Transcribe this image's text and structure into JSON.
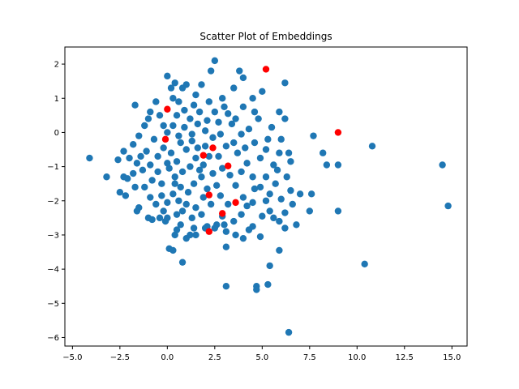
{
  "chart_data": {
    "type": "scatter",
    "title": "Scatter Plot of Embeddings",
    "xlabel": "",
    "ylabel": "",
    "xlim": [
      -5.4,
      15.8
    ],
    "ylim": [
      -6.25,
      2.5
    ],
    "xticks": [
      -5.0,
      -2.5,
      0.0,
      2.5,
      5.0,
      7.5,
      10.0,
      12.5,
      15.0
    ],
    "yticks": [
      2,
      1,
      0,
      -1,
      -2,
      -3,
      -4,
      -5,
      -6
    ],
    "xtick_labels": [
      "−5.0",
      "−2.5",
      "0.0",
      "2.5",
      "5.0",
      "7.5",
      "10.0",
      "12.5",
      "15.0"
    ],
    "ytick_labels": [
      "2",
      "1",
      "0",
      "−1",
      "−2",
      "−3",
      "−4",
      "−5",
      "−6"
    ],
    "grid": false,
    "colors": {
      "main": "#1f77b4",
      "highlight": "#ff0000"
    },
    "series": [
      {
        "color": "#1f77b4",
        "points": [
          [
            2.5,
            2.1
          ],
          [
            2.3,
            1.8
          ],
          [
            3.8,
            1.8
          ],
          [
            4.0,
            1.6
          ],
          [
            0.0,
            1.65
          ],
          [
            0.4,
            1.45
          ],
          [
            0.8,
            1.3
          ],
          [
            0.2,
            1.3
          ],
          [
            1.0,
            1.4
          ],
          [
            1.8,
            1.4
          ],
          [
            6.2,
            1.45
          ],
          [
            5.0,
            1.2
          ],
          [
            -1.7,
            0.8
          ],
          [
            -0.9,
            0.6
          ],
          [
            -0.4,
            0.5
          ],
          [
            3.0,
            0.75
          ],
          [
            4.0,
            0.75
          ],
          [
            4.6,
            0.6
          ],
          [
            5.9,
            0.6
          ],
          [
            6.2,
            0.4
          ],
          [
            4.8,
            0.4
          ],
          [
            -1.0,
            0.4
          ],
          [
            -1.2,
            0.2
          ],
          [
            -0.2,
            0.2
          ],
          [
            -1.5,
            -0.1
          ],
          [
            -1.8,
            -0.35
          ],
          [
            -2.3,
            -0.55
          ],
          [
            -2.0,
            -0.75
          ],
          [
            -2.6,
            -0.8
          ],
          [
            -1.6,
            -0.9
          ],
          [
            -1.1,
            -0.55
          ],
          [
            5.5,
            0.15
          ],
          [
            6.0,
            -0.2
          ],
          [
            5.2,
            -0.5
          ],
          [
            4.9,
            -0.75
          ],
          [
            6.4,
            -0.6
          ],
          [
            7.7,
            -0.1
          ],
          [
            8.2,
            -0.6
          ],
          [
            8.4,
            -0.95
          ],
          [
            9.0,
            -0.95
          ],
          [
            10.8,
            -0.4
          ],
          [
            14.5,
            -0.95
          ],
          [
            14.8,
            -2.15
          ],
          [
            -4.1,
            -0.75
          ],
          [
            -3.2,
            -1.3
          ],
          [
            -2.3,
            -1.3
          ],
          [
            -2.1,
            -1.35
          ],
          [
            -1.7,
            -1.6
          ],
          [
            -2.5,
            -1.75
          ],
          [
            -2.2,
            -1.85
          ],
          [
            -1.5,
            -2.2
          ],
          [
            -1.6,
            -2.3
          ],
          [
            -1.0,
            -2.5
          ],
          [
            -0.8,
            -2.55
          ],
          [
            -0.4,
            -2.5
          ],
          [
            0.0,
            -2.5
          ],
          [
            0.5,
            -2.4
          ],
          [
            0.5,
            -2.85
          ],
          [
            0.4,
            -3.0
          ],
          [
            1.2,
            -3.0
          ],
          [
            1.5,
            -3.0
          ],
          [
            1.0,
            -3.1
          ],
          [
            0.1,
            -3.4
          ],
          [
            0.3,
            -3.45
          ],
          [
            0.8,
            -3.8
          ],
          [
            2.1,
            -2.75
          ],
          [
            2.6,
            -2.7
          ],
          [
            2.5,
            -2.8
          ],
          [
            3.1,
            -2.9
          ],
          [
            3.1,
            -3.35
          ],
          [
            3.6,
            -3.0
          ],
          [
            4.0,
            -3.1
          ],
          [
            4.3,
            -2.85
          ],
          [
            4.9,
            -3.05
          ],
          [
            4.5,
            -2.75
          ],
          [
            5.0,
            -2.45
          ],
          [
            5.4,
            -2.3
          ],
          [
            5.6,
            -2.5
          ],
          [
            5.9,
            -2.6
          ],
          [
            6.2,
            -2.8
          ],
          [
            6.2,
            -2.35
          ],
          [
            6.6,
            -2.1
          ],
          [
            6.0,
            -1.95
          ],
          [
            6.5,
            -1.7
          ],
          [
            7.0,
            -1.8
          ],
          [
            7.6,
            -1.8
          ],
          [
            7.5,
            -2.3
          ],
          [
            6.8,
            -2.7
          ],
          [
            5.9,
            -3.45
          ],
          [
            5.4,
            -3.9
          ],
          [
            3.1,
            -4.5
          ],
          [
            4.7,
            -4.5
          ],
          [
            4.7,
            -4.6
          ],
          [
            5.3,
            -4.45
          ],
          [
            6.4,
            -5.85
          ],
          [
            10.4,
            -3.85
          ],
          [
            9.0,
            -2.3
          ],
          [
            5.8,
            -1.1
          ],
          [
            6.3,
            -1.3
          ],
          [
            6.5,
            -0.85
          ],
          [
            5.6,
            -0.95
          ],
          [
            5.2,
            -1.3
          ],
          [
            4.9,
            -1.6
          ],
          [
            5.4,
            -1.8
          ],
          [
            4.6,
            -1.65
          ],
          [
            4.5,
            -2.05
          ],
          [
            3.9,
            -2.4
          ],
          [
            4.2,
            -2.15
          ],
          [
            3.5,
            -2.6
          ],
          [
            2.9,
            -2.45
          ],
          [
            3.2,
            -2.1
          ],
          [
            2.8,
            -1.85
          ],
          [
            3.6,
            -1.55
          ],
          [
            3.3,
            -1.25
          ],
          [
            3.9,
            -1.15
          ],
          [
            4.2,
            -0.9
          ],
          [
            3.7,
            -0.6
          ],
          [
            4.1,
            -0.45
          ],
          [
            3.5,
            -0.3
          ],
          [
            3.9,
            -0.05
          ],
          [
            3.4,
            0.25
          ],
          [
            3.2,
            0.55
          ],
          [
            2.7,
            0.3
          ],
          [
            2.5,
            0.6
          ],
          [
            2.1,
            0.35
          ],
          [
            1.7,
            0.6
          ],
          [
            1.2,
            0.4
          ],
          [
            0.9,
            0.65
          ],
          [
            0.5,
            0.5
          ],
          [
            0.3,
            0.2
          ],
          [
            0.6,
            -0.1
          ],
          [
            0.9,
            0.15
          ],
          [
            1.3,
            -0.05
          ],
          [
            1.6,
            0.25
          ],
          [
            2.0,
            0.05
          ],
          [
            2.4,
            -0.15
          ],
          [
            2.8,
            -0.05
          ],
          [
            3.1,
            -0.4
          ],
          [
            2.7,
            -0.7
          ],
          [
            2.9,
            -1.05
          ],
          [
            2.4,
            -1.2
          ],
          [
            2.6,
            -1.55
          ],
          [
            2.1,
            -1.65
          ],
          [
            1.8,
            -1.3
          ],
          [
            1.4,
            -1.5
          ],
          [
            1.1,
            -1.75
          ],
          [
            0.7,
            -1.6
          ],
          [
            0.3,
            -1.8
          ],
          [
            0.0,
            -2.05
          ],
          [
            -0.3,
            -1.85
          ],
          [
            -0.6,
            -2.1
          ],
          [
            -0.9,
            -1.9
          ],
          [
            -1.2,
            -1.6
          ],
          [
            -0.8,
            -1.4
          ],
          [
            -0.5,
            -1.15
          ],
          [
            -0.9,
            -0.95
          ],
          [
            -0.5,
            -0.7
          ],
          [
            -0.2,
            -0.45
          ],
          [
            0.2,
            -0.6
          ],
          [
            0.5,
            -0.85
          ],
          [
            0.1,
            -1.05
          ],
          [
            0.4,
            -1.3
          ],
          [
            0.8,
            -1.15
          ],
          [
            1.2,
            -1.0
          ],
          [
            1.5,
            -0.75
          ],
          [
            1.9,
            -0.95
          ],
          [
            1.6,
            -0.45
          ],
          [
            1.0,
            -0.5
          ],
          [
            0.7,
            -0.3
          ],
          [
            1.3,
            -0.25
          ],
          [
            2.0,
            -0.4
          ],
          [
            -0.3,
            -1.5
          ],
          [
            0.0,
            -0.9
          ],
          [
            1.0,
            -2.1
          ],
          [
            1.5,
            -2.2
          ],
          [
            1.8,
            -2.4
          ],
          [
            1.3,
            -2.5
          ],
          [
            0.8,
            -2.3
          ],
          [
            2.3,
            -2.1
          ],
          [
            1.9,
            -1.9
          ],
          [
            0.6,
            -2.0
          ],
          [
            -0.2,
            -2.3
          ],
          [
            2.2,
            -0.7
          ],
          [
            1.7,
            -1.1
          ],
          [
            0.4,
            -1.5
          ],
          [
            -1.3,
            -1.1
          ],
          [
            -1.8,
            -1.2
          ],
          [
            -1.4,
            -0.7
          ],
          [
            -0.7,
            -0.2
          ],
          [
            0.0,
            0.0
          ],
          [
            0.6,
            0.9
          ],
          [
            1.4,
            0.8
          ],
          [
            2.2,
            0.9
          ],
          [
            2.9,
            1.0
          ],
          [
            3.6,
            0.4
          ],
          [
            4.3,
            0.1
          ],
          [
            4.6,
            -0.3
          ],
          [
            4.5,
            -1.3
          ],
          [
            4.0,
            -1.9
          ],
          [
            3.0,
            -2.7
          ],
          [
            2.0,
            -2.8
          ],
          [
            1.4,
            -2.8
          ],
          [
            0.7,
            -2.7
          ],
          [
            -0.1,
            -2.6
          ],
          [
            5.2,
            -2.0
          ],
          [
            5.7,
            -1.5
          ],
          [
            5.9,
            -0.6
          ],
          [
            5.3,
            -0.2
          ],
          [
            4.5,
            1.0
          ],
          [
            3.5,
            1.3
          ],
          [
            1.5,
            1.1
          ],
          [
            0.3,
            1.0
          ],
          [
            -0.6,
            0.9
          ]
        ]
      },
      {
        "color": "#ff0000",
        "points": [
          [
            5.2,
            1.85
          ],
          [
            0.0,
            0.68
          ],
          [
            -0.1,
            -0.2
          ],
          [
            9.0,
            0.0
          ],
          [
            1.9,
            -0.67
          ],
          [
            2.4,
            -0.45
          ],
          [
            3.2,
            -0.98
          ],
          [
            2.2,
            -1.83
          ],
          [
            3.6,
            -2.05
          ],
          [
            2.9,
            -2.37
          ],
          [
            2.2,
            -2.9
          ]
        ]
      }
    ]
  }
}
